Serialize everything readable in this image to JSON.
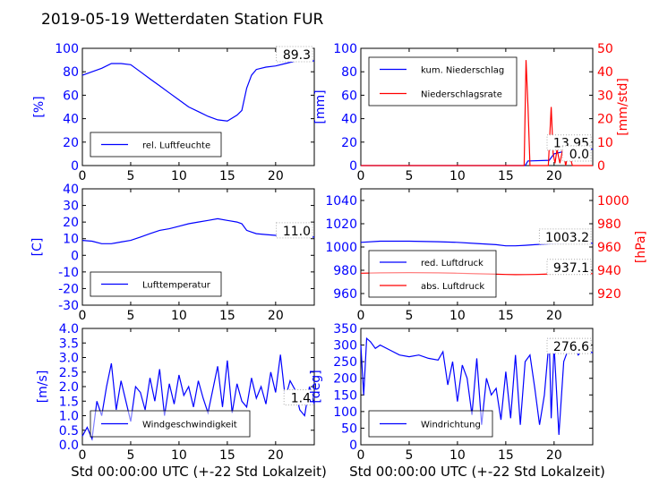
{
  "title": "2019-05-19 Wetterdaten Station FUR",
  "colors": {
    "blue": "#0000ff",
    "red": "#ff0000",
    "black": "#000000"
  },
  "chart_data": [
    {
      "id": "humidity",
      "type": "line",
      "xlim": [
        0,
        24
      ],
      "xticks": [
        0,
        5,
        10,
        15,
        20
      ],
      "ylim": [
        0,
        100
      ],
      "yticks": [
        0,
        20,
        40,
        60,
        80,
        100
      ],
      "ylabel": "[%]",
      "legend": "bottom-left",
      "last_value_label": "89.3",
      "series": [
        {
          "name": "rel. Luftfeuchte",
          "color": "#0000ff",
          "x": [
            0,
            1,
            2,
            3,
            4,
            5,
            6,
            7,
            8,
            9,
            10,
            11,
            12,
            13,
            14,
            15,
            16,
            16.5,
            17,
            17.5,
            18,
            19,
            20,
            21,
            22,
            23,
            24
          ],
          "y": [
            77,
            80,
            83,
            87,
            87,
            86,
            80,
            74,
            68,
            62,
            56,
            50,
            46,
            42,
            39,
            38,
            43,
            47,
            66,
            77,
            82,
            84,
            85,
            87,
            89,
            89,
            89.3
          ]
        }
      ]
    },
    {
      "id": "precip",
      "type": "line",
      "xlim": [
        0,
        24
      ],
      "xticks": [
        0,
        5,
        10,
        15,
        20
      ],
      "ylim": [
        0,
        100
      ],
      "yticks": [
        0,
        20,
        40,
        60,
        80,
        100
      ],
      "ylabel": "[mm]",
      "y2lim": [
        0,
        50
      ],
      "y2ticks": [
        0,
        10,
        20,
        30,
        40,
        50
      ],
      "y2label": "[mm/std]",
      "legend": "top-left",
      "last_value_label": "13.95",
      "last_value_label_2": "0.0",
      "series": [
        {
          "name": "kum. Niederschlag",
          "axis": "left",
          "color": "#0000ff",
          "x": [
            0,
            17,
            17.3,
            17.5,
            19.5,
            20,
            21,
            22,
            23,
            24
          ],
          "y": [
            0,
            0,
            4,
            4,
            4.5,
            10,
            12,
            13,
            13.9,
            13.95
          ]
        },
        {
          "name": "Niederschlagsrate",
          "axis": "right",
          "color": "#ff0000",
          "x": [
            0,
            16.9,
            17.1,
            17.3,
            17.5,
            19.4,
            19.7,
            19.9,
            20.1,
            20.3,
            20.6,
            20.9,
            21.2,
            21.5,
            21.9,
            22.3,
            24
          ],
          "y": [
            0,
            0,
            45,
            25,
            0,
            0,
            25,
            5,
            1,
            7,
            1,
            7,
            0,
            6,
            0,
            0,
            0
          ]
        }
      ]
    },
    {
      "id": "temperature",
      "type": "line",
      "xlim": [
        0,
        24
      ],
      "xticks": [
        0,
        5,
        10,
        15,
        20
      ],
      "ylim": [
        -30,
        40
      ],
      "yticks": [
        -30,
        -20,
        -10,
        0,
        10,
        20,
        30,
        40
      ],
      "ylabel": "[C]",
      "legend": "bottom-left",
      "last_value_label": "11.0",
      "series": [
        {
          "name": "Lufttemperatur",
          "color": "#0000ff",
          "x": [
            0,
            1,
            2,
            3,
            4,
            5,
            6,
            7,
            8,
            9,
            10,
            11,
            12,
            13,
            14,
            15,
            16,
            16.5,
            17,
            17.5,
            18,
            19,
            20,
            21,
            22,
            23,
            24
          ],
          "y": [
            9,
            8.5,
            7,
            7,
            8,
            9,
            11,
            13,
            15,
            16,
            17.5,
            19,
            20,
            21,
            22,
            21,
            20,
            19,
            15,
            14,
            13,
            12.5,
            12,
            11.5,
            11,
            11,
            11
          ]
        }
      ]
    },
    {
      "id": "pressure",
      "type": "line",
      "xlim": [
        0,
        24
      ],
      "xticks": [
        0,
        5,
        10,
        15,
        20
      ],
      "ylim": [
        950,
        1050
      ],
      "yticks": [
        960,
        980,
        1000,
        1020,
        1040
      ],
      "y2lim": [
        910,
        1010
      ],
      "y2ticks": [
        920,
        940,
        960,
        980,
        1000
      ],
      "y2label": "[hPa]",
      "legend": "bottom-left",
      "last_value_label": "1003.2",
      "last_value_label_2": "937.1",
      "series": [
        {
          "name": "red. Luftdruck",
          "axis": "left",
          "color": "#0000ff",
          "x": [
            0,
            2,
            5,
            8,
            10,
            12,
            14,
            15,
            16,
            17,
            18,
            19,
            20,
            22,
            24
          ],
          "y": [
            1004,
            1005,
            1005,
            1004.5,
            1004,
            1003,
            1002,
            1001,
            1001,
            1001.5,
            1002,
            1002.5,
            1003,
            1003.2,
            1003.2
          ]
        },
        {
          "name": "abs. Luftdruck",
          "axis": "right",
          "color": "#ff0000",
          "x": [
            0,
            2,
            5,
            8,
            10,
            12,
            14,
            15,
            16,
            17,
            18,
            19,
            20,
            22,
            24
          ],
          "y": [
            937.5,
            937.8,
            938,
            937.8,
            937.5,
            937,
            936.6,
            936.4,
            936.2,
            936.3,
            936.4,
            936.6,
            937,
            937.1,
            937.1
          ]
        }
      ]
    },
    {
      "id": "windspeed",
      "type": "line",
      "xlim": [
        0,
        24
      ],
      "xticks": [
        0,
        5,
        10,
        15,
        20
      ],
      "ylim": [
        0,
        4.0
      ],
      "yticks": [
        0.0,
        0.5,
        1.0,
        1.5,
        2.0,
        2.5,
        3.0,
        3.5,
        4.0
      ],
      "ylabel": "[m/s]",
      "legend": "bottom-left",
      "last_value_label": "1.4",
      "series": [
        {
          "name": "Windgeschwindigkeit",
          "color": "#0000ff",
          "x": [
            0,
            0.5,
            1,
            1.5,
            2,
            2.5,
            3,
            3.5,
            4,
            4.5,
            5,
            5.5,
            6,
            6.5,
            7,
            7.5,
            8,
            8.5,
            9,
            9.5,
            10,
            10.5,
            11,
            11.5,
            12,
            12.5,
            13,
            13.5,
            14,
            14.5,
            15,
            15.5,
            16,
            16.5,
            17,
            17.5,
            18,
            18.5,
            19,
            19.5,
            20,
            20.5,
            21,
            21.5,
            22,
            22.5,
            23,
            23.5,
            24
          ],
          "y": [
            0.3,
            0.6,
            0.2,
            1.5,
            1.0,
            2.0,
            2.8,
            1.2,
            2.2,
            1.5,
            0.8,
            2.0,
            1.8,
            1.2,
            2.3,
            1.5,
            2.6,
            1.0,
            2.1,
            1.4,
            2.4,
            1.7,
            2.0,
            1.3,
            2.2,
            1.6,
            1.1,
            1.9,
            2.7,
            1.3,
            2.9,
            1.1,
            2.1,
            1.5,
            1.3,
            2.3,
            1.6,
            2.0,
            1.4,
            2.5,
            1.8,
            3.1,
            1.6,
            2.2,
            1.9,
            1.2,
            1.0,
            2.0,
            1.4
          ]
        }
      ]
    },
    {
      "id": "winddir",
      "type": "line",
      "xlim": [
        0,
        24
      ],
      "xticks": [
        0,
        5,
        10,
        15,
        20
      ],
      "ylim": [
        0,
        350
      ],
      "yticks": [
        0,
        50,
        100,
        150,
        200,
        250,
        300,
        350
      ],
      "ylabel": "[deg]",
      "legend": "bottom-left",
      "last_value_label": "276.6",
      "series": [
        {
          "name": "Windrichtung",
          "color": "#0000ff",
          "x": [
            0,
            0.3,
            0.6,
            1,
            1.5,
            2,
            3,
            4,
            5,
            6,
            7,
            8,
            8.5,
            9,
            9.5,
            10,
            10.5,
            11,
            11.5,
            12,
            12.5,
            13,
            13.5,
            14,
            14.5,
            15,
            15.5,
            16,
            16.5,
            17,
            17.5,
            18,
            18.5,
            19,
            19.5,
            19.7,
            20,
            20.5,
            21,
            21.5,
            22,
            22.5,
            23,
            23.5,
            24
          ],
          "y": [
            300,
            150,
            320,
            310,
            290,
            300,
            285,
            270,
            265,
            270,
            260,
            255,
            280,
            180,
            250,
            130,
            240,
            200,
            90,
            260,
            60,
            200,
            150,
            170,
            75,
            220,
            80,
            270,
            60,
            250,
            270,
            170,
            60,
            150,
            320,
            80,
            300,
            30,
            250,
            290,
            300,
            270,
            285,
            280,
            277
          ]
        }
      ]
    }
  ],
  "xlabel": "Std 00:00:00 UTC (+-22 Std Lokalzeit)"
}
